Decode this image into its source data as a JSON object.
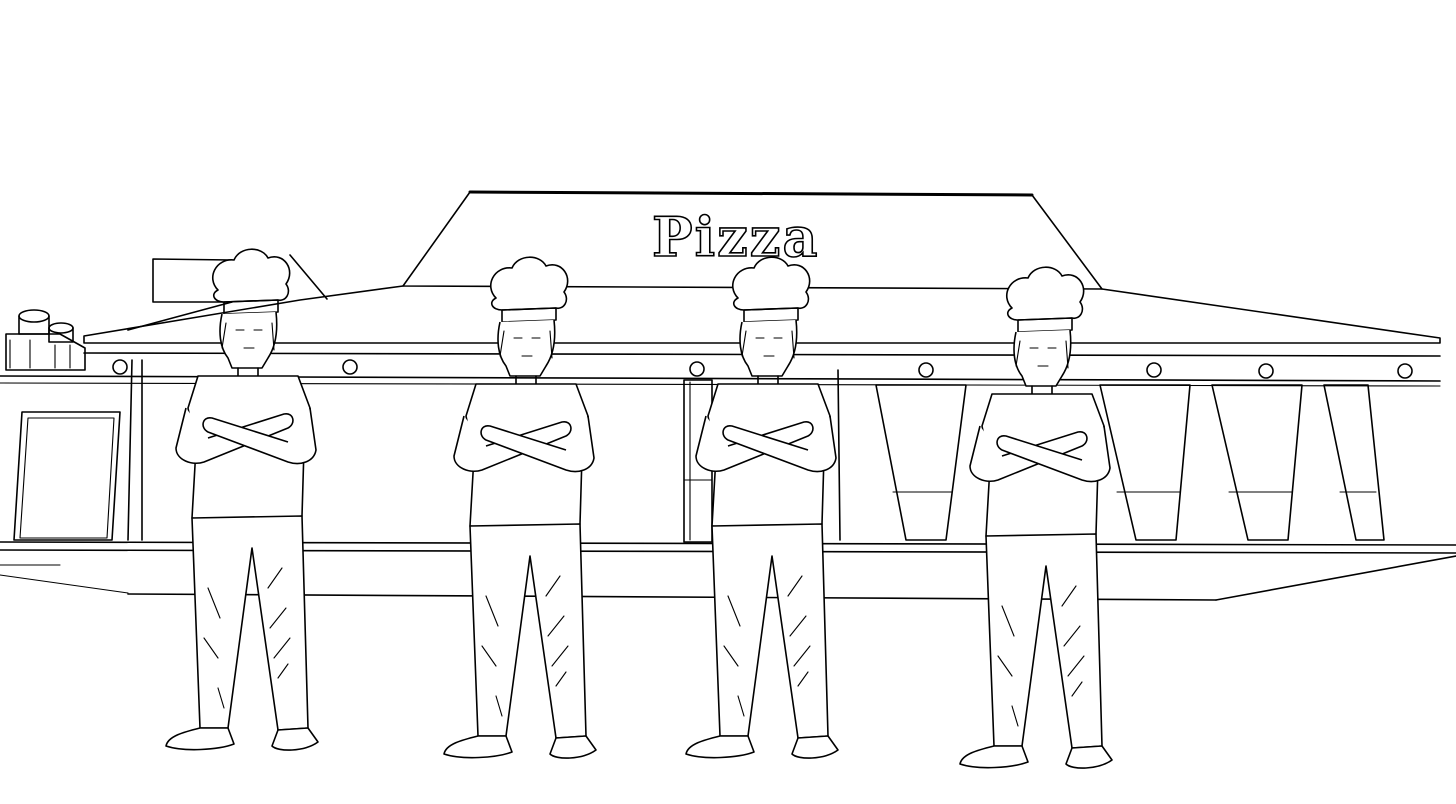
{
  "storefront": {
    "sign_text": "Pizza"
  },
  "colors": {
    "ink": "#000000",
    "background": "#ffffff"
  },
  "figures": {
    "count": 4,
    "description_icon": "chef-figure-icon"
  }
}
